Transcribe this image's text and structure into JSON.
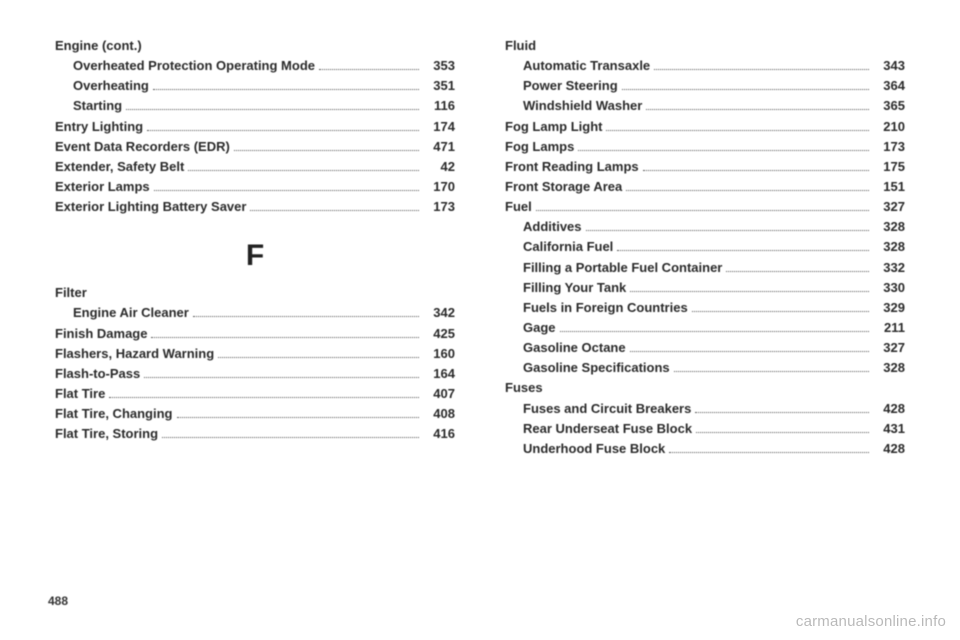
{
  "pageNumber": "488",
  "watermark": "carmanualsonline.info",
  "sectionLetter": "F",
  "left": {
    "before": [
      {
        "label": "Engine (cont.)",
        "page": "",
        "sub": false,
        "header": true
      },
      {
        "label": "Overheated Protection Operating Mode",
        "page": "353",
        "sub": true
      },
      {
        "label": "Overheating",
        "page": "351",
        "sub": true
      },
      {
        "label": "Starting",
        "page": "116",
        "sub": true
      },
      {
        "label": "Entry Lighting",
        "page": "174",
        "sub": false
      },
      {
        "label": "Event Data Recorders (EDR)",
        "page": "471",
        "sub": false
      },
      {
        "label": "Extender, Safety Belt",
        "page": "42",
        "sub": false
      },
      {
        "label": "Exterior Lamps",
        "page": "170",
        "sub": false
      },
      {
        "label": "Exterior Lighting Battery Saver",
        "page": "173",
        "sub": false
      }
    ],
    "after": [
      {
        "label": "Filter",
        "page": "",
        "sub": false,
        "header": true
      },
      {
        "label": "Engine Air Cleaner",
        "page": "342",
        "sub": true
      },
      {
        "label": "Finish Damage",
        "page": "425",
        "sub": false
      },
      {
        "label": "Flashers, Hazard Warning",
        "page": "160",
        "sub": false
      },
      {
        "label": "Flash-to-Pass",
        "page": "164",
        "sub": false
      },
      {
        "label": "Flat Tire",
        "page": "407",
        "sub": false
      },
      {
        "label": "Flat Tire, Changing",
        "page": "408",
        "sub": false
      },
      {
        "label": "Flat Tire, Storing",
        "page": "416",
        "sub": false
      }
    ]
  },
  "right": [
    {
      "label": "Fluid",
      "page": "",
      "sub": false,
      "header": true
    },
    {
      "label": "Automatic Transaxle",
      "page": "343",
      "sub": true
    },
    {
      "label": "Power Steering",
      "page": "364",
      "sub": true
    },
    {
      "label": "Windshield Washer",
      "page": "365",
      "sub": true
    },
    {
      "label": "Fog Lamp Light",
      "page": "210",
      "sub": false
    },
    {
      "label": "Fog Lamps",
      "page": "173",
      "sub": false
    },
    {
      "label": "Front Reading Lamps",
      "page": "175",
      "sub": false
    },
    {
      "label": "Front Storage Area",
      "page": "151",
      "sub": false
    },
    {
      "label": "Fuel",
      "page": "327",
      "sub": false
    },
    {
      "label": "Additives",
      "page": "328",
      "sub": true
    },
    {
      "label": "California Fuel",
      "page": "328",
      "sub": true
    },
    {
      "label": "Filling a Portable Fuel Container",
      "page": "332",
      "sub": true
    },
    {
      "label": "Filling Your Tank",
      "page": "330",
      "sub": true
    },
    {
      "label": "Fuels in Foreign Countries",
      "page": "329",
      "sub": true
    },
    {
      "label": "Gage",
      "page": "211",
      "sub": true
    },
    {
      "label": "Gasoline Octane",
      "page": "327",
      "sub": true
    },
    {
      "label": "Gasoline Specifications",
      "page": "328",
      "sub": true
    },
    {
      "label": "Fuses",
      "page": "",
      "sub": false,
      "header": true
    },
    {
      "label": "Fuses and Circuit Breakers",
      "page": "428",
      "sub": true
    },
    {
      "label": "Rear Underseat Fuse Block",
      "page": "431",
      "sub": true
    },
    {
      "label": "Underhood Fuse Block",
      "page": "428",
      "sub": true
    }
  ]
}
